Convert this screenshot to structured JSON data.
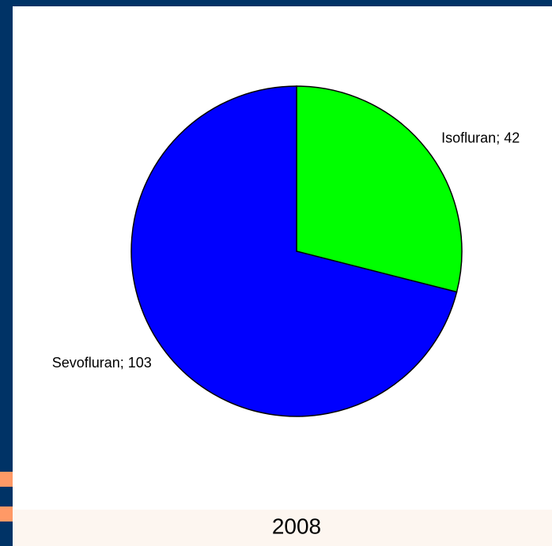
{
  "chart_data": {
    "type": "pie",
    "title": "2008",
    "values": [
      42,
      103
    ],
    "value_labels": [
      "Isofluran; 42",
      "Sevofluran; 103"
    ],
    "colors": [
      "#00ff00",
      "#0000ff"
    ]
  }
}
